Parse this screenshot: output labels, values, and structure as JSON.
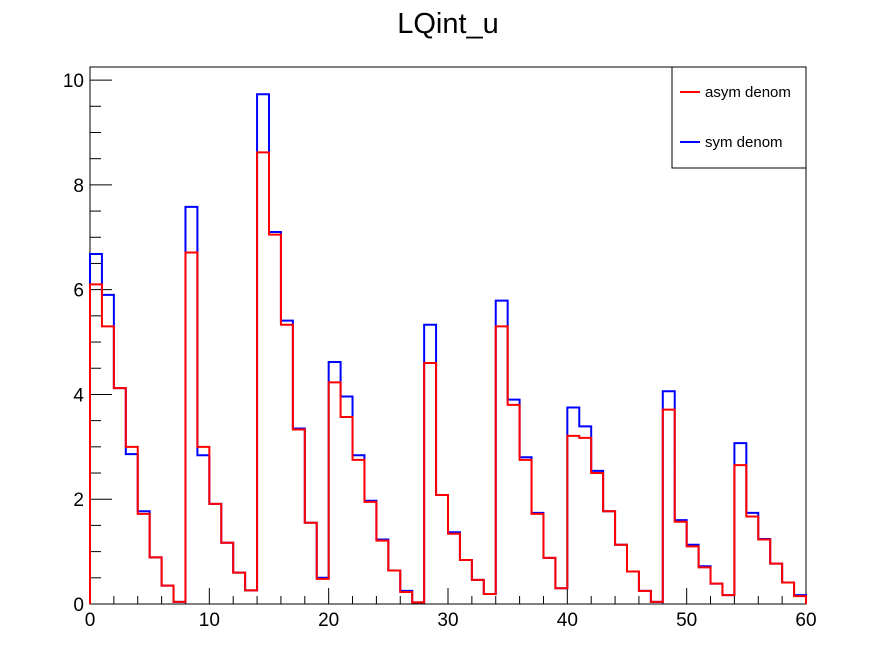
{
  "chart_data": {
    "type": "line",
    "title": "LQint_u",
    "xlabel": "",
    "ylabel": "",
    "xlim": [
      0,
      60
    ],
    "ylim": [
      0,
      10.25
    ],
    "x_ticks": [
      0,
      10,
      20,
      30,
      40,
      50,
      60
    ],
    "y_ticks": [
      0,
      2,
      4,
      6,
      8,
      10
    ],
    "bin_edges_start": 0,
    "bin_width": 1,
    "legend_position": "top-right",
    "series": [
      {
        "name": "sym denom",
        "color": "#0000ff",
        "values": [
          6.68,
          5.9,
          4.12,
          2.86,
          1.77,
          0.89,
          0.35,
          0.04,
          7.58,
          2.84,
          1.91,
          1.17,
          0.6,
          0.26,
          9.73,
          7.1,
          5.41,
          3.35,
          1.55,
          0.5,
          4.62,
          3.96,
          2.84,
          1.97,
          1.23,
          0.64,
          0.25,
          0.03,
          5.33,
          2.08,
          1.37,
          0.84,
          0.46,
          0.19,
          5.79,
          3.9,
          2.8,
          1.74,
          0.88,
          0.3,
          3.75,
          3.39,
          2.54,
          1.77,
          1.13,
          0.62,
          0.25,
          0.04,
          4.06,
          1.6,
          1.13,
          0.72,
          0.39,
          0.17,
          3.07,
          1.74,
          1.24,
          0.77,
          0.41,
          0.17
        ],
        "step": true
      },
      {
        "name": "asym denom",
        "color": "#ff0000",
        "values": [
          6.1,
          5.3,
          4.12,
          3.0,
          1.72,
          0.89,
          0.35,
          0.04,
          6.71,
          3.0,
          1.91,
          1.17,
          0.6,
          0.26,
          8.62,
          7.05,
          5.33,
          3.33,
          1.55,
          0.48,
          4.23,
          3.57,
          2.75,
          1.95,
          1.21,
          0.64,
          0.23,
          0.03,
          4.6,
          2.08,
          1.34,
          0.84,
          0.46,
          0.19,
          5.3,
          3.8,
          2.75,
          1.72,
          0.88,
          0.3,
          3.21,
          3.17,
          2.5,
          1.77,
          1.13,
          0.62,
          0.25,
          0.04,
          3.71,
          1.57,
          1.1,
          0.7,
          0.39,
          0.17,
          2.65,
          1.67,
          1.23,
          0.77,
          0.41,
          0.15
        ],
        "step": true
      }
    ],
    "legend": [
      {
        "label": "asym denom",
        "color": "#ff0000"
      },
      {
        "label": "sym denom",
        "color": "#0000ff"
      }
    ]
  }
}
